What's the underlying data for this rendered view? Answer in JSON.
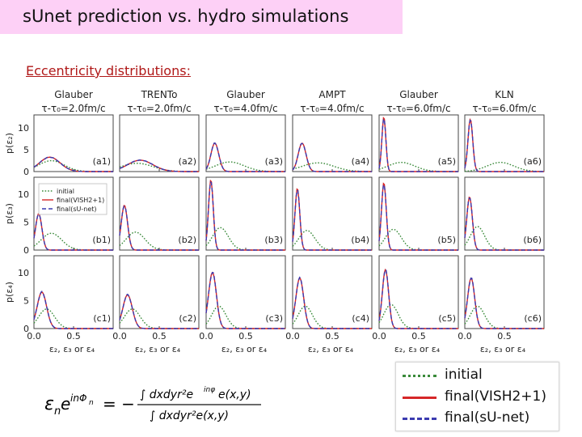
{
  "slide": {
    "title": "sUnet prediction vs. hydro simulations",
    "subtitle": "Eccentricity distributions:"
  },
  "legend": {
    "initial": "initial",
    "vish": "final(VISH2+1)",
    "sunet": "final(sU-net)"
  },
  "formula": {
    "lhs_base": "ε",
    "lhs_sub": "n",
    "lhs_exp_e": "e",
    "lhs_exp": "inΦ",
    "lhs_exp_sub": "n",
    "equals": "= −",
    "numerator": "∫ dxdyr²e",
    "numerator_exp": "inφ",
    "numerator_tail": "e(x,y)",
    "denominator": "∫ dxdyr²e(x,y)"
  },
  "chart_data": {
    "type": "line",
    "columns": [
      {
        "model": "Glauber",
        "time": "τ-τ₀=2.0fm/c"
      },
      {
        "model": "TRENTo",
        "time": "τ-τ₀=2.0fm/c"
      },
      {
        "model": "Glauber",
        "time": "τ-τ₀=4.0fm/c"
      },
      {
        "model": "AMPT",
        "time": "τ-τ₀=4.0fm/c"
      },
      {
        "model": "Glauber",
        "time": "τ-τ₀=6.0fm/c"
      },
      {
        "model": "KLN",
        "time": "τ-τ₀=6.0fm/c"
      }
    ],
    "rows": [
      {
        "ylabel": "p(ε₂)",
        "labels": [
          "(a1)",
          "(a2)",
          "(a3)",
          "(a4)",
          "(a5)",
          "(a6)"
        ]
      },
      {
        "ylabel": "p(ε₃)",
        "labels": [
          "(b1)",
          "(b2)",
          "(b3)",
          "(b4)",
          "(b5)",
          "(b6)"
        ]
      },
      {
        "ylabel": "p(ε₄)",
        "labels": [
          "(c1)",
          "(c2)",
          "(c3)",
          "(c4)",
          "(c5)",
          "(c6)"
        ]
      }
    ],
    "xlabel": "ε₂, ε₃ or ε₄",
    "xlim": [
      0,
      1.0
    ],
    "ylim": [
      0,
      13
    ],
    "xticks": [
      "0.0",
      "0.5"
    ],
    "yticks": [
      "0",
      "5",
      "10"
    ],
    "inset_legend": {
      "panel": "(b1)",
      "entries": [
        "initial",
        "final(VISH2+1)",
        "final(sU-net)"
      ]
    },
    "series_styles": [
      {
        "key": "initial",
        "color": "#3a8a3a",
        "dash": "dotted"
      },
      {
        "key": "vish",
        "color": "#d62728",
        "dash": "solid"
      },
      {
        "key": "sunet",
        "color": "#3b3bb0",
        "dash": "dashed"
      }
    ],
    "panels": [
      [
        {
          "initial": {
            "mu": 0.22,
            "sigma": 0.16,
            "peak": 2.5
          },
          "final": {
            "mu": 0.2,
            "sigma": 0.13,
            "peak": 3.3
          }
        },
        {
          "initial": {
            "mu": 0.22,
            "sigma": 0.2,
            "peak": 1.9
          },
          "final": {
            "mu": 0.26,
            "sigma": 0.16,
            "peak": 2.6
          }
        },
        {
          "initial": {
            "mu": 0.3,
            "sigma": 0.18,
            "peak": 2.2
          },
          "final": {
            "mu": 0.11,
            "sigma": 0.05,
            "peak": 6.5
          }
        },
        {
          "initial": {
            "mu": 0.32,
            "sigma": 0.2,
            "peak": 2.0
          },
          "final": {
            "mu": 0.12,
            "sigma": 0.05,
            "peak": 6.5
          }
        },
        {
          "initial": {
            "mu": 0.28,
            "sigma": 0.17,
            "peak": 2.1
          },
          "final": {
            "mu": 0.06,
            "sigma": 0.025,
            "peak": 12.5
          }
        },
        {
          "initial": {
            "mu": 0.45,
            "sigma": 0.17,
            "peak": 2.1
          },
          "final": {
            "mu": 0.07,
            "sigma": 0.03,
            "peak": 12.0
          }
        }
      ],
      [
        {
          "initial": {
            "mu": 0.22,
            "sigma": 0.13,
            "peak": 3.0
          },
          "final": {
            "mu": 0.06,
            "sigma": 0.04,
            "peak": 6.5
          }
        },
        {
          "initial": {
            "mu": 0.2,
            "sigma": 0.12,
            "peak": 3.2
          },
          "final": {
            "mu": 0.06,
            "sigma": 0.04,
            "peak": 8.0
          }
        },
        {
          "initial": {
            "mu": 0.18,
            "sigma": 0.1,
            "peak": 4.0
          },
          "final": {
            "mu": 0.06,
            "sigma": 0.03,
            "peak": 12.5
          }
        },
        {
          "initial": {
            "mu": 0.18,
            "sigma": 0.1,
            "peak": 3.5
          },
          "final": {
            "mu": 0.06,
            "sigma": 0.03,
            "peak": 11.0
          }
        },
        {
          "initial": {
            "mu": 0.18,
            "sigma": 0.1,
            "peak": 3.7
          },
          "final": {
            "mu": 0.06,
            "sigma": 0.03,
            "peak": 12.0
          }
        },
        {
          "initial": {
            "mu": 0.16,
            "sigma": 0.09,
            "peak": 4.2
          },
          "final": {
            "mu": 0.06,
            "sigma": 0.035,
            "peak": 9.5
          }
        }
      ],
      [
        {
          "initial": {
            "mu": 0.16,
            "sigma": 0.1,
            "peak": 3.5
          },
          "final": {
            "mu": 0.1,
            "sigma": 0.06,
            "peak": 6.5
          }
        },
        {
          "initial": {
            "mu": 0.16,
            "sigma": 0.1,
            "peak": 3.5
          },
          "final": {
            "mu": 0.1,
            "sigma": 0.06,
            "peak": 6.0
          }
        },
        {
          "initial": {
            "mu": 0.16,
            "sigma": 0.09,
            "peak": 4.0
          },
          "final": {
            "mu": 0.08,
            "sigma": 0.05,
            "peak": 10.0
          }
        },
        {
          "initial": {
            "mu": 0.16,
            "sigma": 0.09,
            "peak": 4.0
          },
          "final": {
            "mu": 0.09,
            "sigma": 0.05,
            "peak": 9.0
          }
        },
        {
          "initial": {
            "mu": 0.15,
            "sigma": 0.09,
            "peak": 4.3
          },
          "final": {
            "mu": 0.08,
            "sigma": 0.04,
            "peak": 10.5
          }
        },
        {
          "initial": {
            "mu": 0.16,
            "sigma": 0.09,
            "peak": 4.0
          },
          "final": {
            "mu": 0.08,
            "sigma": 0.045,
            "peak": 9.0
          }
        }
      ]
    ]
  }
}
